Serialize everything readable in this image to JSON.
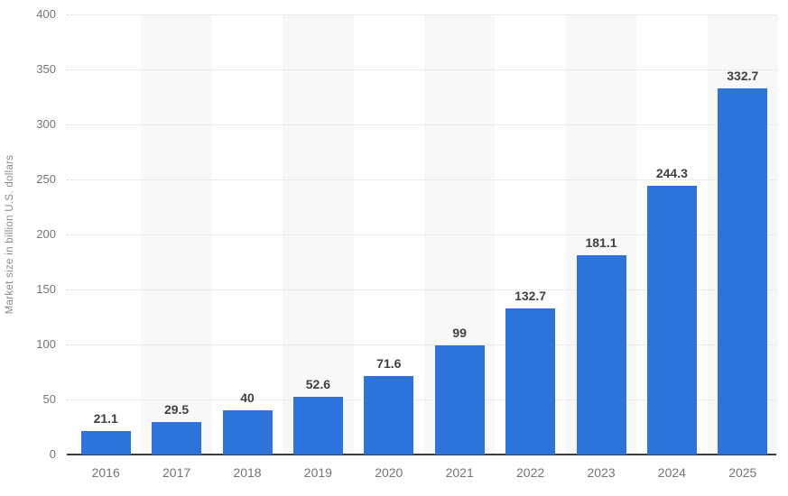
{
  "chart_data": {
    "type": "bar",
    "title": "",
    "xlabel": "",
    "ylabel": "Market size in billion U.S. dollars",
    "categories": [
      "2016",
      "2017",
      "2018",
      "2019",
      "2020",
      "2021",
      "2022",
      "2023",
      "2024",
      "2025"
    ],
    "values": [
      21.1,
      29.5,
      40,
      52.6,
      71.6,
      99,
      132.7,
      181.1,
      244.3,
      332.7
    ],
    "value_labels": [
      "21.1",
      "29.5",
      "40",
      "52.6",
      "71.6",
      "99",
      "132.7",
      "181.1",
      "244.3",
      "332.7"
    ],
    "ylim": [
      0,
      400
    ],
    "yticks": [
      0,
      50,
      100,
      150,
      200,
      250,
      300,
      350,
      400
    ],
    "grid": "horizontal-dotted",
    "legend": "none",
    "band_pattern": "alternating columns shaded starting with 2017",
    "colors": {
      "bar": "#2d73dc",
      "band": "#f8f8f8",
      "gridline": "#d9d9d9",
      "baseline": "#3b3b3b",
      "value_label": "#404040",
      "tick_label": "#757575",
      "axis_title": "#8a8a8a",
      "background": "#ffffff"
    }
  }
}
